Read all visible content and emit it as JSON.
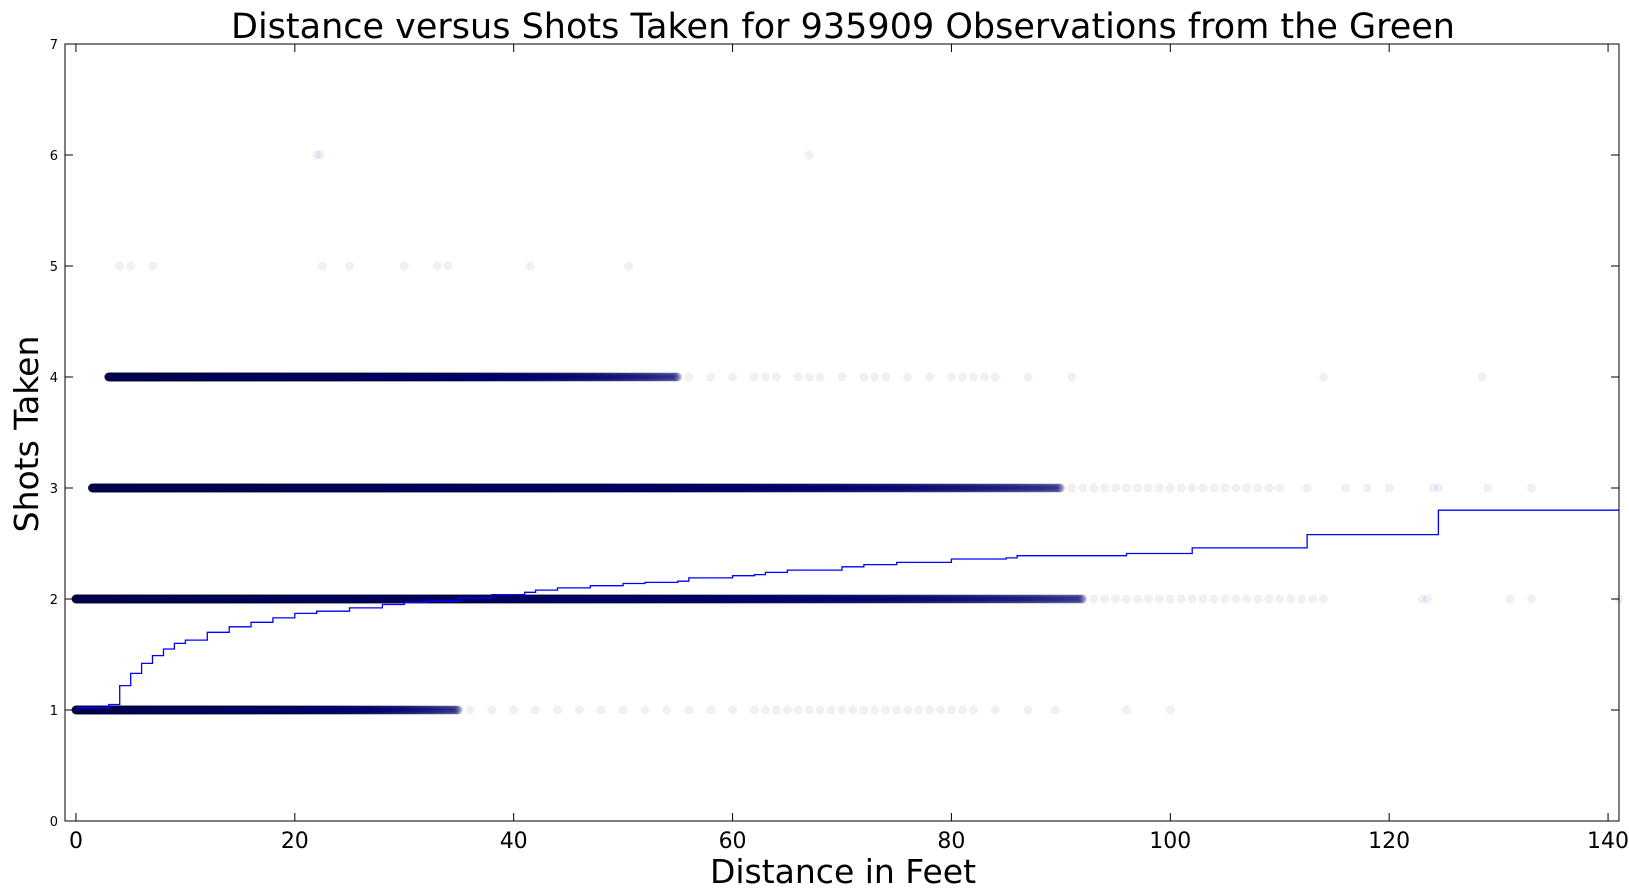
{
  "chart_data": {
    "type": "scatter",
    "title": "Distance versus Shots Taken for 935909 Observations from the Green",
    "xlabel": "Distance in Feet",
    "ylabel": "Shots Taken",
    "xlim": [
      -1,
      141
    ],
    "ylim": [
      0,
      7
    ],
    "x_ticks": [
      "0",
      "20",
      "40",
      "60",
      "80",
      "100",
      "120",
      "140"
    ],
    "y_ticks": [
      "0",
      "1",
      "2",
      "3",
      "4",
      "5",
      "6",
      "7"
    ],
    "grid": false,
    "colors": {
      "points": "#00007f",
      "trend": "#0000ff"
    },
    "point_alpha": 0.06,
    "scatter_bands": [
      {
        "y": 1,
        "dense_from": 0,
        "dense_to": 35,
        "sparse": [
          36,
          38,
          40,
          42,
          44,
          46,
          48,
          50,
          52,
          54,
          56,
          58,
          60,
          62,
          63,
          64,
          65,
          66,
          67,
          68,
          69,
          70,
          71,
          72,
          73,
          74,
          75,
          76,
          77,
          78,
          79,
          80,
          81,
          82,
          84,
          87,
          89.5,
          96,
          100
        ]
      },
      {
        "y": 2,
        "dense_from": 0,
        "dense_to": 92,
        "sparse": [
          93,
          94,
          95,
          96,
          97,
          98,
          99,
          100,
          101,
          102,
          103,
          104,
          105,
          106,
          107,
          108,
          109,
          110,
          111,
          112,
          113,
          114,
          123,
          123.5,
          131,
          133,
          141
        ]
      },
      {
        "y": 3,
        "dense_from": 1.5,
        "dense_to": 90,
        "sparse": [
          91,
          92,
          93,
          94,
          95,
          96,
          97,
          98,
          99,
          100,
          101,
          102,
          103,
          104,
          105,
          106,
          107,
          108,
          109,
          110,
          112.5,
          116,
          118,
          120,
          124,
          124.5,
          129,
          133
        ]
      },
      {
        "y": 4,
        "dense_from": 3,
        "dense_to": 55,
        "sparse": [
          56,
          58,
          60,
          62,
          63,
          64,
          66,
          67,
          68,
          70,
          72,
          73,
          74,
          76,
          78,
          80,
          81,
          82,
          83,
          84,
          87,
          91,
          114,
          128.5
        ]
      },
      {
        "y": 5,
        "dense_from": null,
        "dense_to": null,
        "sparse": [
          4,
          5,
          7,
          22.5,
          25,
          30,
          33,
          34,
          41.5,
          50.5
        ]
      },
      {
        "y": 6,
        "dense_from": null,
        "dense_to": null,
        "sparse": [
          22,
          22.3,
          67
        ]
      }
    ],
    "trend_line": {
      "x": [
        0,
        2,
        3,
        4,
        5,
        6,
        7,
        8,
        9,
        10,
        12,
        14,
        16,
        18,
        20,
        22,
        25,
        28,
        30,
        32,
        35,
        38,
        41,
        42,
        44,
        47,
        50,
        52,
        55,
        56,
        60,
        62,
        63,
        65,
        70,
        72,
        75,
        80,
        85,
        86,
        96,
        102,
        112.5,
        123.5,
        124.5,
        141
      ],
      "y": [
        1.02,
        1.02,
        1.05,
        1.22,
        1.33,
        1.42,
        1.49,
        1.55,
        1.6,
        1.63,
        1.7,
        1.75,
        1.79,
        1.83,
        1.87,
        1.89,
        1.92,
        1.95,
        1.97,
        1.98,
        2.01,
        2.04,
        2.06,
        2.08,
        2.1,
        2.12,
        2.14,
        2.15,
        2.16,
        2.19,
        2.21,
        2.22,
        2.24,
        2.26,
        2.29,
        2.31,
        2.33,
        2.36,
        2.37,
        2.39,
        2.41,
        2.46,
        2.58,
        2.58,
        2.8,
        2.8
      ]
    }
  }
}
